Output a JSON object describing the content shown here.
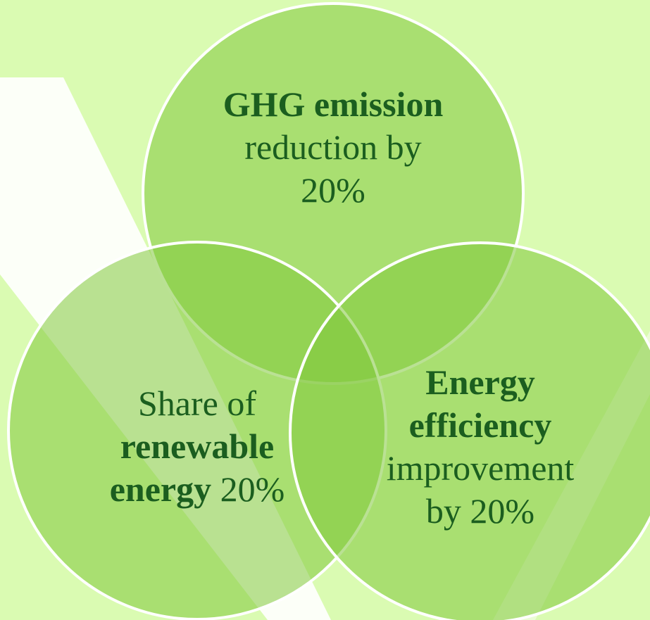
{
  "nodes": [
    {
      "lines": [
        [
          {
            "text": "GHG emission",
            "bold": true
          }
        ],
        [
          {
            "text": "reduction by",
            "bold": false
          }
        ],
        [
          {
            "text": "20%",
            "bold": false
          }
        ]
      ]
    },
    {
      "lines": [
        [
          {
            "text": "Share of",
            "bold": false
          }
        ],
        [
          {
            "text": "renewable",
            "bold": true
          }
        ],
        [
          {
            "text": "energy",
            "bold": true
          },
          {
            "text": " 20%",
            "bold": false
          }
        ]
      ]
    },
    {
      "lines": [
        [
          {
            "text": "Energy",
            "bold": true
          }
        ],
        [
          {
            "text": "efficiency",
            "bold": true
          }
        ],
        [
          {
            "text": "improvement",
            "bold": false
          }
        ],
        [
          {
            "text": "by 20%",
            "bold": false
          }
        ]
      ]
    }
  ]
}
